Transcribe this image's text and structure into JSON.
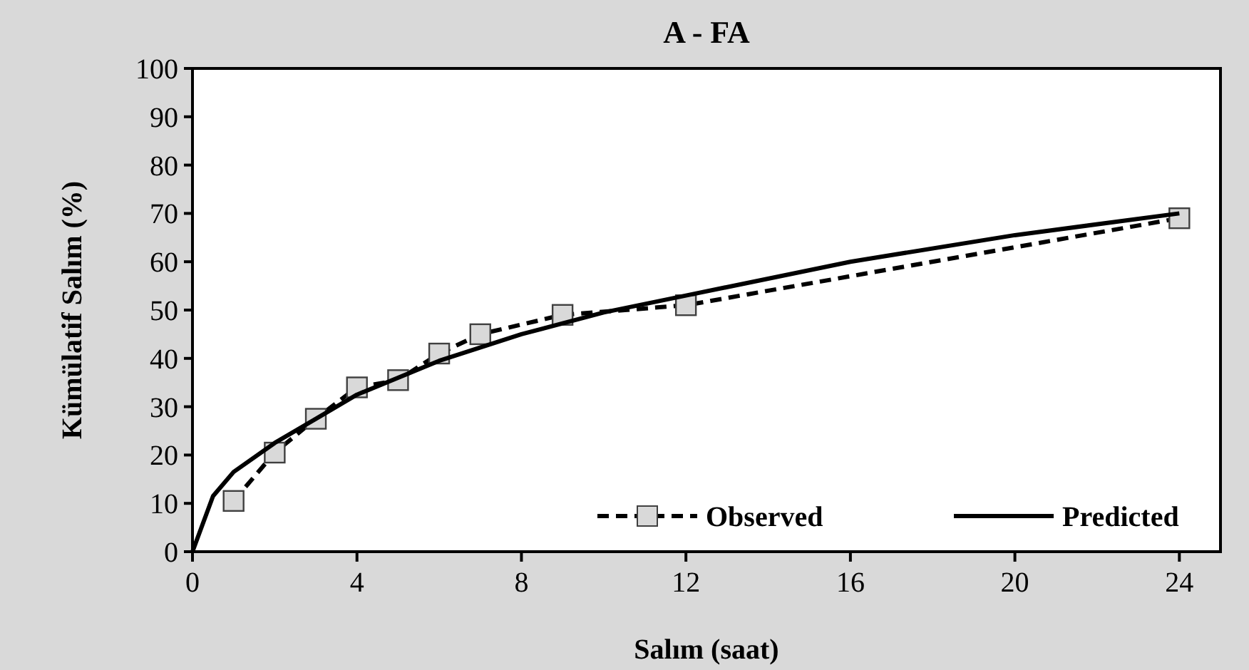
{
  "chart_data": {
    "type": "line",
    "title": "A - FA",
    "xlabel": "Salım (saat)",
    "ylabel": "Kümülatif Salım (%)",
    "xlim": [
      0,
      25
    ],
    "xticks": [
      0,
      4,
      8,
      12,
      16,
      20,
      24
    ],
    "ylim": [
      0,
      100
    ],
    "yticks": [
      0,
      10,
      20,
      30,
      40,
      50,
      60,
      70,
      80,
      90,
      100
    ],
    "grid": false,
    "legend": "bottom right",
    "series": [
      {
        "name": "Observed",
        "color": "#000000",
        "marker": "square",
        "line_style": "dashed",
        "x": [
          1,
          2,
          3,
          4,
          5,
          6,
          7,
          9,
          12,
          24
        ],
        "values": [
          10.5,
          20.5,
          27.5,
          34,
          35.5,
          41,
          45,
          49,
          51,
          69
        ]
      },
      {
        "name": "Predicted",
        "color": "#000000",
        "marker": "none",
        "line_style": "solid",
        "x": [
          0,
          0.5,
          1,
          2,
          3,
          4,
          6,
          8,
          10,
          12,
          16,
          20,
          24
        ],
        "values": [
          0,
          11.5,
          16.5,
          22.5,
          27.5,
          32.5,
          39.5,
          45,
          49.5,
          53,
          60,
          65.5,
          70
        ]
      }
    ]
  }
}
